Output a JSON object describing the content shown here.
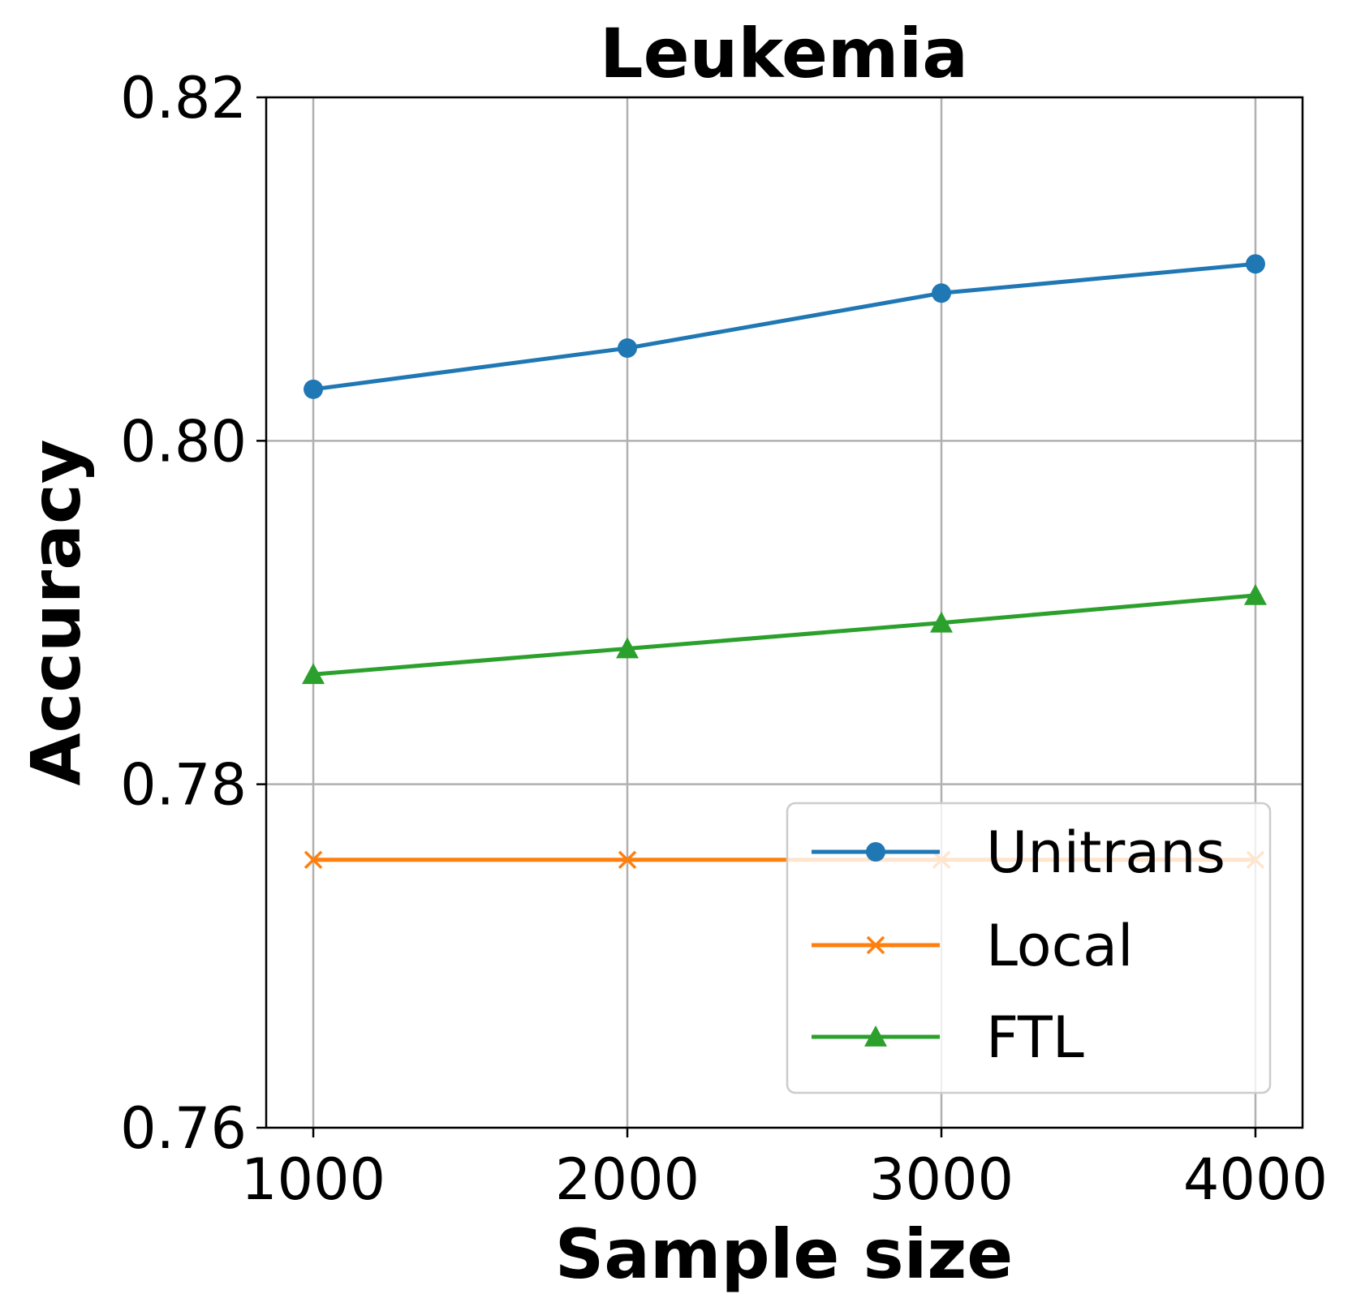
{
  "chart_data": {
    "type": "line",
    "title": "Leukemia",
    "xlabel": "Sample size",
    "ylabel": "Accuracy",
    "x": [
      1000,
      2000,
      3000,
      4000
    ],
    "xticks": [
      "1000",
      "2000",
      "3000",
      "4000"
    ],
    "yticks": [
      "0.76",
      "0.78",
      "0.80",
      "0.82"
    ],
    "ytick_values": [
      0.76,
      0.78,
      0.8,
      0.82
    ],
    "xlim": [
      850,
      4150
    ],
    "ylim": [
      0.76,
      0.82
    ],
    "grid": true,
    "legend_position": "lower-right",
    "series": [
      {
        "name": "Unitrans",
        "values": [
          0.803,
          0.8054,
          0.8086,
          0.8103
        ],
        "color": "#1f77b4",
        "marker": "circle"
      },
      {
        "name": "Local",
        "values": [
          0.7756,
          0.7756,
          0.7756,
          0.7756
        ],
        "color": "#ff7f0e",
        "marker": "x"
      },
      {
        "name": "FTL",
        "values": [
          0.7864,
          0.7879,
          0.7894,
          0.791
        ],
        "color": "#2ca02c",
        "marker": "triangle"
      }
    ]
  }
}
